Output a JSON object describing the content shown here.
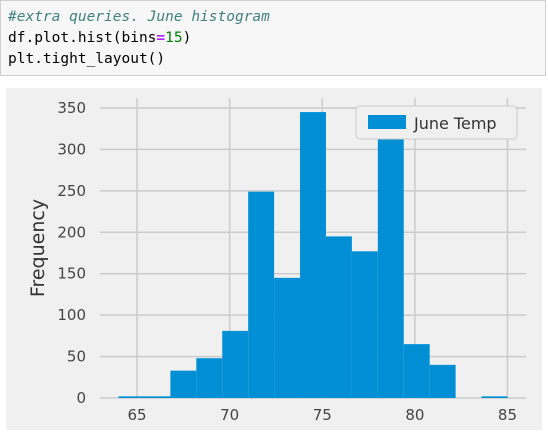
{
  "code_cell": {
    "line1": "#extra queries. June histogram",
    "line2_pre": "df.plot.hist(bins",
    "line2_op": "=",
    "line2_num": "15",
    "line2_post": ")",
    "line3": "plt.tight_layout()"
  },
  "colors": {
    "bar": "#008fd5",
    "plot_bg": "#f0f0f0",
    "grid": "#cbcbcb"
  },
  "chart_data": {
    "type": "bar",
    "subtype": "histogram",
    "bins": [
      {
        "start": 64.0,
        "end": 65.4,
        "count": 2
      },
      {
        "start": 65.4,
        "end": 66.8,
        "count": 2
      },
      {
        "start": 66.8,
        "end": 68.2,
        "count": 33
      },
      {
        "start": 68.2,
        "end": 69.6,
        "count": 48
      },
      {
        "start": 69.6,
        "end": 71.0,
        "count": 81
      },
      {
        "start": 71.0,
        "end": 72.4,
        "count": 249
      },
      {
        "start": 72.4,
        "end": 73.8,
        "count": 145
      },
      {
        "start": 73.8,
        "end": 75.2,
        "count": 345
      },
      {
        "start": 75.2,
        "end": 76.6,
        "count": 195
      },
      {
        "start": 76.6,
        "end": 78.0,
        "count": 177
      },
      {
        "start": 78.0,
        "end": 79.4,
        "count": 315
      },
      {
        "start": 79.4,
        "end": 80.8,
        "count": 65
      },
      {
        "start": 80.8,
        "end": 82.2,
        "count": 40
      },
      {
        "start": 82.2,
        "end": 83.6,
        "count": 0
      },
      {
        "start": 83.6,
        "end": 85.0,
        "count": 2
      }
    ],
    "series": [
      {
        "name": "June Temp"
      }
    ],
    "xlim": [
      63.0,
      86.0
    ],
    "ylim": [
      0,
      362
    ],
    "xticks": [
      65,
      70,
      75,
      80,
      85
    ],
    "yticks": [
      0,
      50,
      100,
      150,
      200,
      250,
      300,
      350
    ],
    "ylabel": "Frequency",
    "xlabel": "",
    "grid": true,
    "legend": "top-right"
  }
}
